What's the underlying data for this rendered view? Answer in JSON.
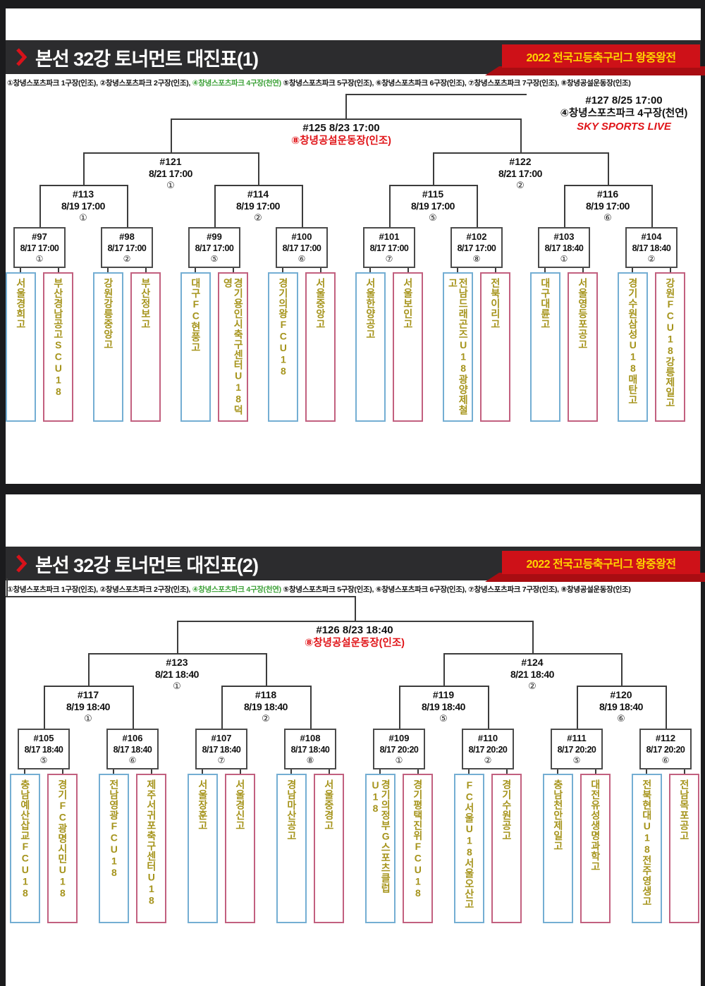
{
  "colors": {
    "edge": "#1b1b1d",
    "band": "#2c2c2e",
    "red": "#ce1118",
    "tail": "#a90d12",
    "yellow": "#ffd400",
    "green": "#3aa035",
    "gold": "#a6941c",
    "blue": "#74aed3",
    "pink": "#c2607f",
    "line": "#3c3c3c",
    "venue_red": "#e01418"
  },
  "header1": {
    "title": "본선 32강 토너먼트 대진표(1)",
    "badge": "2022 전국고등축구리그 왕중왕전"
  },
  "header2": {
    "title": "본선 32강 토너먼트 대진표(2)",
    "badge": "2022 전국고등축구리그 왕중왕전"
  },
  "legend": {
    "pre": "①창녕스포츠파크 1구장(인조), ②창녕스포츠파크 2구장(인조), ",
    "green": "④창녕스포츠파크 4구장(천연) ",
    "post": "⑤창녕스포츠파크 5구장(인조), ⑥창녕스포츠파크 6구장(인조), ⑦창녕스포츠파크 7구장(인조), ⑧창녕공설운동장(인조)"
  },
  "bracket1": {
    "final": {
      "id": "#127 8/25 17:00",
      "venue": "④창녕스포츠파크 4구장(천연)",
      "live": "SKY SPORTS LIVE"
    },
    "semi": {
      "id": "#125 8/23 17:00",
      "venue": "⑧창녕공설운동장(인조)"
    },
    "quarters": [
      {
        "id": "#121",
        "dt": "8/21 17:00",
        "v": "①"
      },
      {
        "id": "#122",
        "dt": "8/21 17:00",
        "v": "②"
      }
    ],
    "round16": [
      {
        "id": "#113",
        "dt": "8/19 17:00",
        "v": "①"
      },
      {
        "id": "#114",
        "dt": "8/19 17:00",
        "v": "②"
      },
      {
        "id": "#115",
        "dt": "8/19 17:00",
        "v": "⑤"
      },
      {
        "id": "#116",
        "dt": "8/19 17:00",
        "v": "⑥"
      }
    ],
    "round32": [
      {
        "id": "#97",
        "dt": "8/17 17:00",
        "v": "①",
        "a": "서울경희고",
        "b": "부산경남공고SCU18"
      },
      {
        "id": "#98",
        "dt": "8/17 17:00",
        "v": "②",
        "a": "강원강릉중앙고",
        "b": "부산정보고"
      },
      {
        "id": "#99",
        "dt": "8/17 17:00",
        "v": "⑤",
        "a": "대구FC현풍고",
        "b": "경기용인시축구센터U18덕영"
      },
      {
        "id": "#100",
        "dt": "8/17 17:00",
        "v": "⑥",
        "a": "경기의왕FCU18",
        "b": "서울중앙고"
      },
      {
        "id": "#101",
        "dt": "8/17 17:00",
        "v": "⑦",
        "a": "서울한양공고",
        "b": "서울보인고"
      },
      {
        "id": "#102",
        "dt": "8/17 17:00",
        "v": "⑧",
        "a": "전남드래곤즈U18광양제철고",
        "b": "전북이리고"
      },
      {
        "id": "#103",
        "dt": "8/17 18:40",
        "v": "①",
        "a": "대구대륜고",
        "b": "서울영등포공고"
      },
      {
        "id": "#104",
        "dt": "8/17 18:40",
        "v": "②",
        "a": "경기수원삼성U18매탄고",
        "b": "강원FCU18강릉제일고"
      }
    ]
  },
  "bracket2": {
    "semi": {
      "id": "#126 8/23 18:40",
      "venue": "⑧창녕공설운동장(인조)"
    },
    "quarters": [
      {
        "id": "#123",
        "dt": "8/21 18:40",
        "v": "①"
      },
      {
        "id": "#124",
        "dt": "8/21 18:40",
        "v": "②"
      }
    ],
    "round16": [
      {
        "id": "#117",
        "dt": "8/19 18:40",
        "v": "①"
      },
      {
        "id": "#118",
        "dt": "8/19 18:40",
        "v": "②"
      },
      {
        "id": "#119",
        "dt": "8/19 18:40",
        "v": "⑤"
      },
      {
        "id": "#120",
        "dt": "8/19 18:40",
        "v": "⑥"
      }
    ],
    "round32": [
      {
        "id": "#105",
        "dt": "8/17 18:40",
        "v": "⑤",
        "a": "충남예산삽교FCU18",
        "b": "경기FC광명시민U18"
      },
      {
        "id": "#106",
        "dt": "8/17 18:40",
        "v": "⑥",
        "a": "전남영광FCU18",
        "b": "제주서귀포축구센터U18"
      },
      {
        "id": "#107",
        "dt": "8/17 18:40",
        "v": "⑦",
        "a": "서울장훈고",
        "b": "서울경신고"
      },
      {
        "id": "#108",
        "dt": "8/17 18:40",
        "v": "⑧",
        "a": "경남마산공고",
        "b": "서울중경고"
      },
      {
        "id": "#109",
        "dt": "8/17 20:20",
        "v": "①",
        "a": "경기의정부G스포츠클럽U18",
        "b": "경기평택진위FCU18"
      },
      {
        "id": "#110",
        "dt": "8/17 20:20",
        "v": "②",
        "a": "FC서울U18서울오산고",
        "b": "경기수원공고"
      },
      {
        "id": "#111",
        "dt": "8/17 20:20",
        "v": "⑤",
        "a": "충남천안제일고",
        "b": "대전유성생명과학고"
      },
      {
        "id": "#112",
        "dt": "8/17 20:20",
        "v": "⑥",
        "a": "전북현대U18전주영생고",
        "b": "전남목포공고"
      }
    ]
  }
}
